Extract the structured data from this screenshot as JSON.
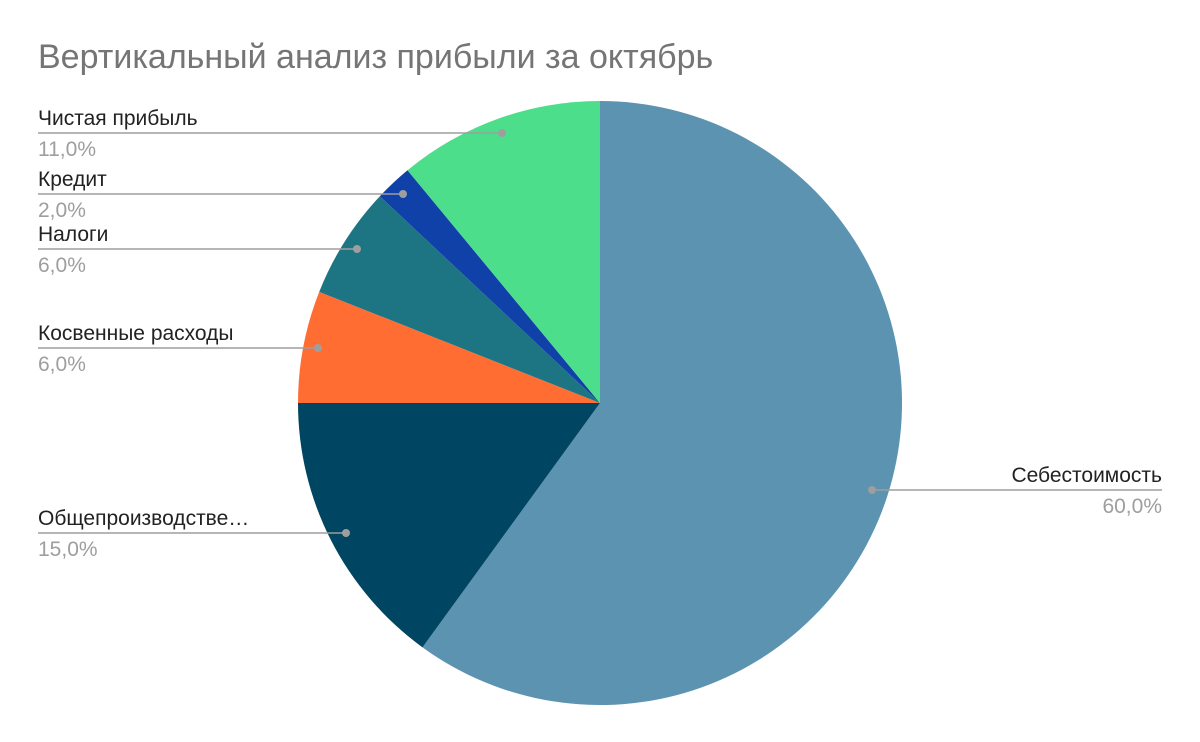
{
  "chart_data": {
    "type": "pie",
    "title": "Вертикальный анализ прибыли за октябрь",
    "slices": [
      {
        "label": "Себестоимость",
        "value": 60.0,
        "value_label": "60,0%",
        "color": "#5b93b0"
      },
      {
        "label": "Общепроизводстве…",
        "value": 15.0,
        "value_label": "15,0%",
        "color": "#004562"
      },
      {
        "label": "Косвенные расходы",
        "value": 6.0,
        "value_label": "6,0%",
        "color": "#ff6d33"
      },
      {
        "label": "Налоги",
        "value": 6.0,
        "value_label": "6,0%",
        "color": "#1d7584"
      },
      {
        "label": "Кредит",
        "value": 2.0,
        "value_label": "2,0%",
        "color": "#1041a8"
      },
      {
        "label": "Чистая прибыль",
        "value": 11.0,
        "value_label": "11,0%",
        "color": "#4dde8b"
      }
    ],
    "start_angle_deg": 0,
    "direction": "clockwise",
    "legend": "none",
    "labels_position": "outside-with-leader-lines"
  }
}
